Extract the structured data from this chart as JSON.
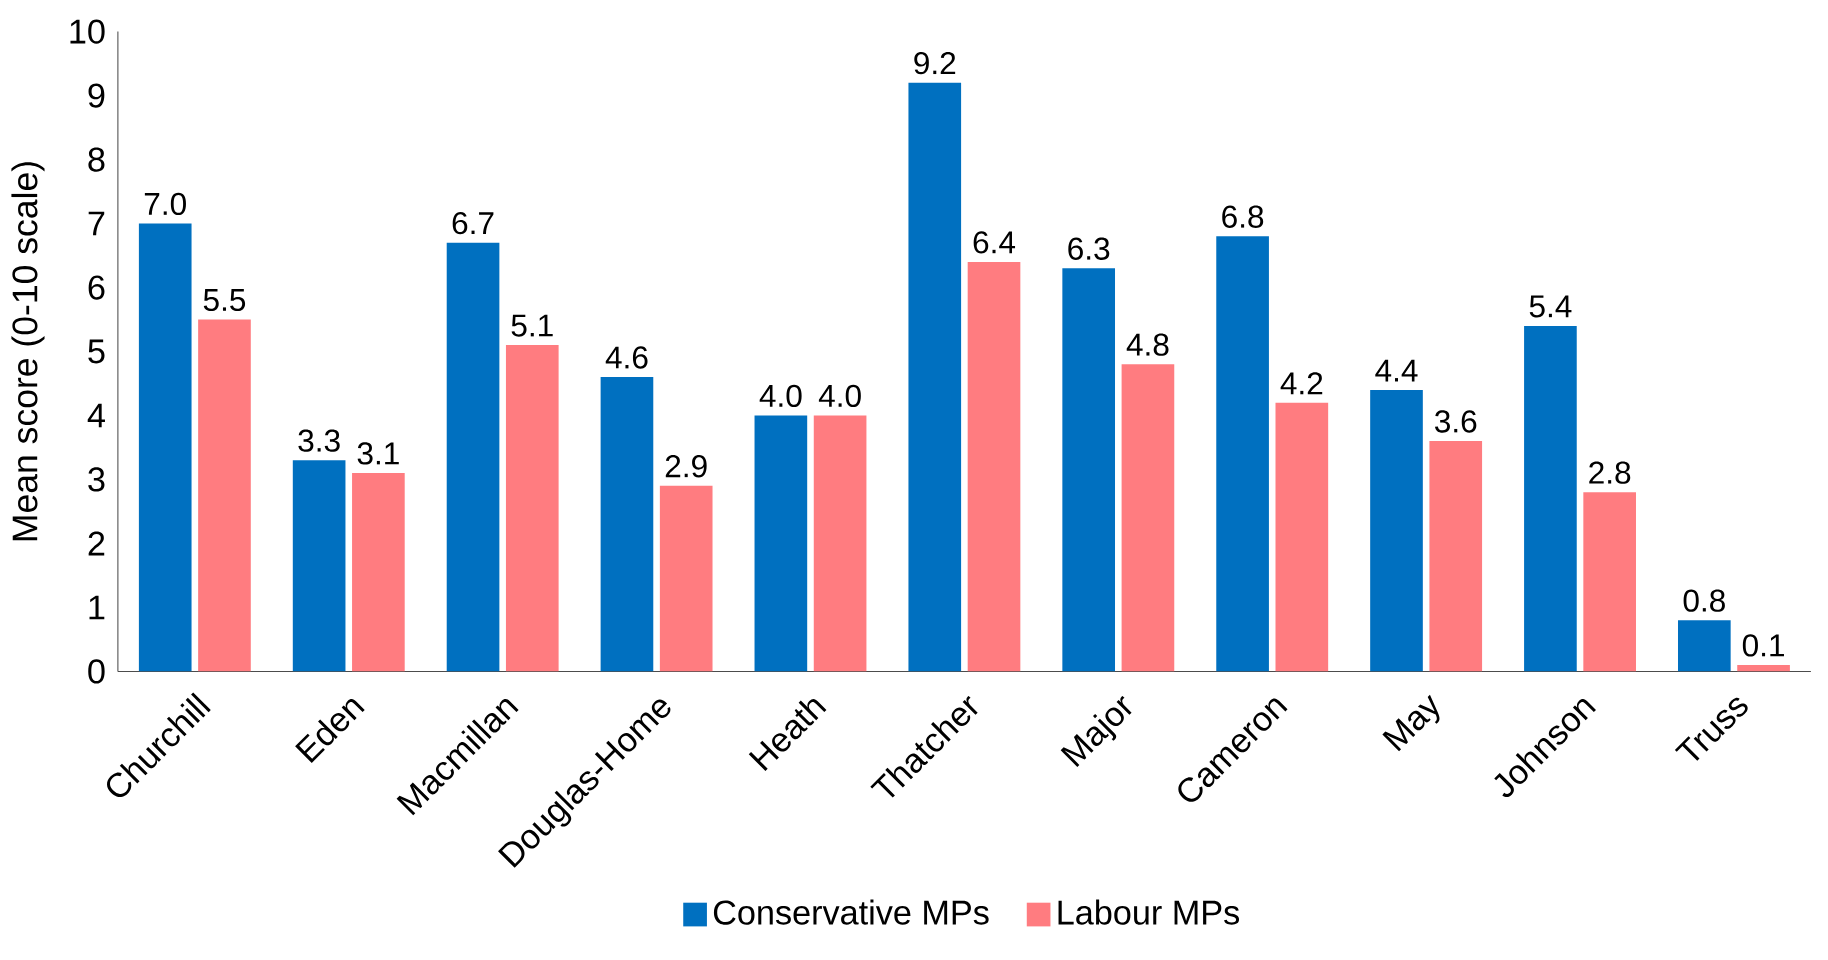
{
  "chart_data": {
    "type": "bar",
    "ylabel": "Mean score (0-10 scale)",
    "categories": [
      "Churchill",
      "Eden",
      "Macmillan",
      "Douglas-Home",
      "Heath",
      "Thatcher",
      "Major",
      "Cameron",
      "May",
      "Johnson",
      "Truss"
    ],
    "series": [
      {
        "name": "Conservative MPs",
        "color": "#0070c0",
        "values": [
          7.0,
          3.3,
          6.7,
          4.6,
          4.0,
          9.2,
          6.3,
          6.8,
          4.4,
          5.4,
          0.8
        ],
        "value_labels": [
          "7.0",
          "3.3",
          "6.7",
          "4.6",
          "4.0",
          "9.2",
          "6.3",
          "6.8",
          "4.4",
          "5.4",
          "0.8"
        ]
      },
      {
        "name": "Labour MPs",
        "color": "#ff7c80",
        "values": [
          5.5,
          3.1,
          5.1,
          2.9,
          4.0,
          6.4,
          4.8,
          4.2,
          3.6,
          2.8,
          0.1
        ],
        "value_labels": [
          "5.5",
          "3.1",
          "5.1",
          "2.9",
          "4.0",
          "6.4",
          "4.8",
          "4.2",
          "3.6",
          "2.8",
          "0.1"
        ]
      }
    ],
    "ylim": [
      0,
      10
    ],
    "yticks": [
      0,
      1,
      2,
      3,
      4,
      5,
      6,
      7,
      8,
      9,
      10
    ],
    "grid": false,
    "legend": "bottom"
  }
}
